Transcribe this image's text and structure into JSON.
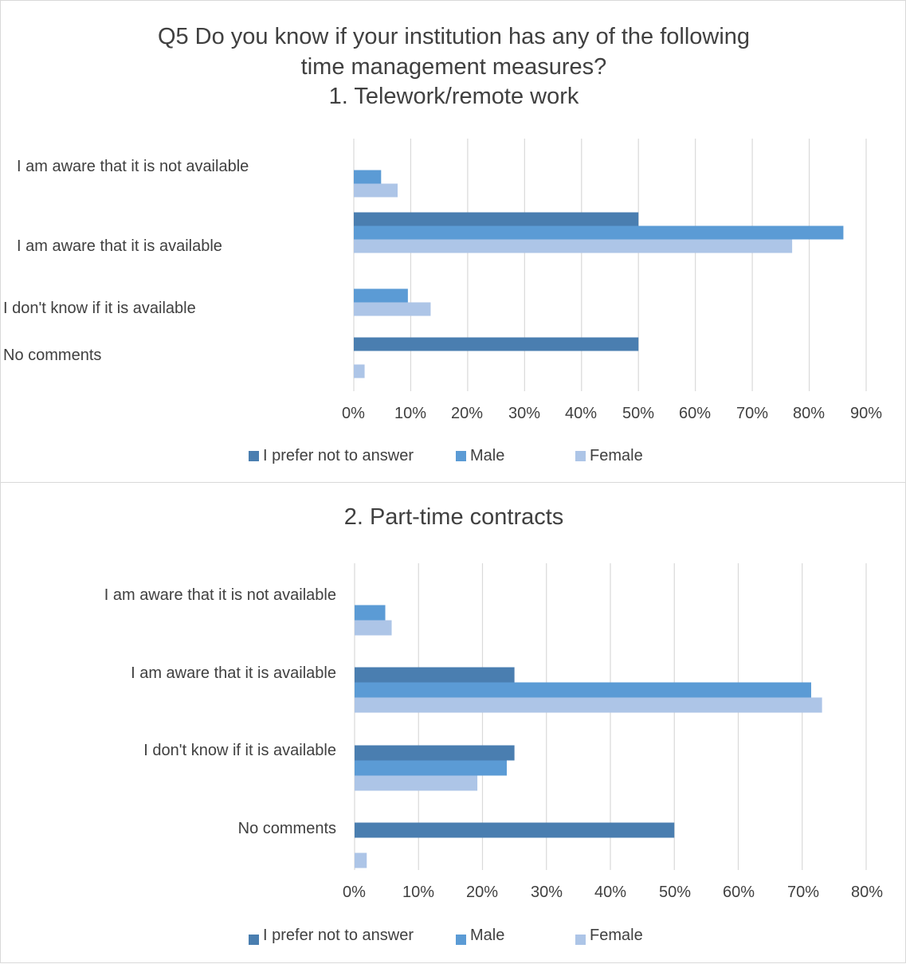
{
  "colors": {
    "prefer": "#4a7eb0",
    "male": "#5b9bd5",
    "female": "#adc5e7",
    "grid": "#d9d9d9"
  },
  "chart_data": [
    {
      "type": "bar",
      "orientation": "horizontal",
      "title_lines": [
        "Q5 Do you know if your institution has any of the following",
        "time management measures?",
        "1. Telework/remote work"
      ],
      "categories": [
        "I am aware that it is not available",
        "I am aware that it is available",
        "I don't know if it is available",
        "No comments"
      ],
      "series": [
        {
          "name": "I prefer not to answer",
          "values": [
            0,
            50,
            0,
            50
          ]
        },
        {
          "name": "Male",
          "values": [
            4.8,
            86,
            9.5,
            0
          ]
        },
        {
          "name": "Female",
          "values": [
            7.7,
            77,
            13.5,
            1.9
          ]
        }
      ],
      "xlim": [
        0,
        90
      ],
      "xticks": [
        "0%",
        "10%",
        "20%",
        "30%",
        "40%",
        "50%",
        "60%",
        "70%",
        "80%",
        "90%"
      ],
      "grid": true,
      "legend": "bottom"
    },
    {
      "type": "bar",
      "orientation": "horizontal",
      "title_lines": [
        "2. Part-time contracts"
      ],
      "categories": [
        "I am aware that it is not available",
        "I am aware that it is available",
        "I don't know if it is available",
        "No comments"
      ],
      "series": [
        {
          "name": "I prefer not to answer",
          "values": [
            0,
            25,
            25,
            50
          ]
        },
        {
          "name": "Male",
          "values": [
            4.8,
            71.4,
            23.8,
            0
          ]
        },
        {
          "name": "Female",
          "values": [
            5.8,
            73.1,
            19.2,
            1.9
          ]
        }
      ],
      "xlim": [
        0,
        80
      ],
      "xticks": [
        "0%",
        "10%",
        "20%",
        "30%",
        "40%",
        "50%",
        "60%",
        "70%",
        "80%"
      ],
      "grid": true,
      "legend": "bottom"
    }
  ]
}
